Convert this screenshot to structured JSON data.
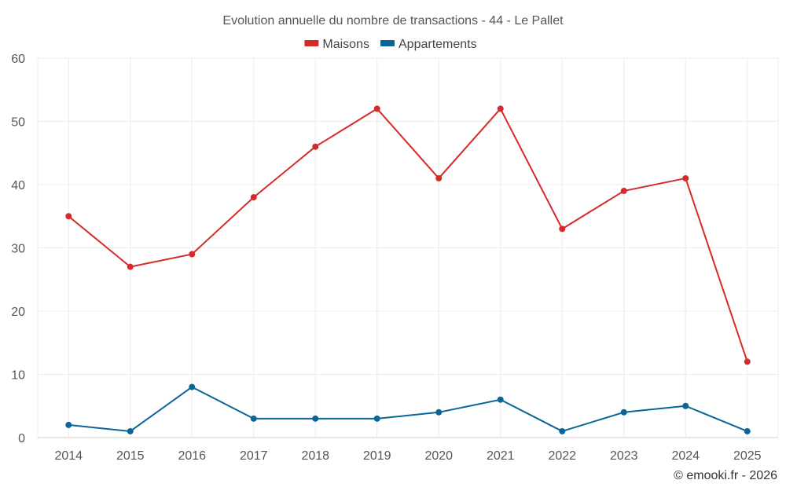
{
  "chart_data": {
    "type": "line",
    "title": "Evolution annuelle du nombre de transactions - 44 - Le Pallet",
    "categories": [
      "2014",
      "2015",
      "2016",
      "2017",
      "2018",
      "2019",
      "2020",
      "2021",
      "2022",
      "2023",
      "2024",
      "2025"
    ],
    "series": [
      {
        "name": "Maisons",
        "color": "#d42a2a",
        "values": [
          35,
          27,
          29,
          38,
          46,
          52,
          41,
          52,
          33,
          39,
          41,
          12
        ]
      },
      {
        "name": "Appartements",
        "color": "#0a6699",
        "values": [
          2,
          1,
          8,
          3,
          3,
          3,
          4,
          6,
          1,
          4,
          5,
          1
        ]
      }
    ],
    "yticks": [
      0,
      10,
      20,
      30,
      40,
      50,
      60
    ],
    "ylim": [
      0,
      60
    ],
    "xlabel": "",
    "ylabel": "",
    "legend": "top-center",
    "grid": true
  },
  "credit": "© emooki.fr - 2026"
}
